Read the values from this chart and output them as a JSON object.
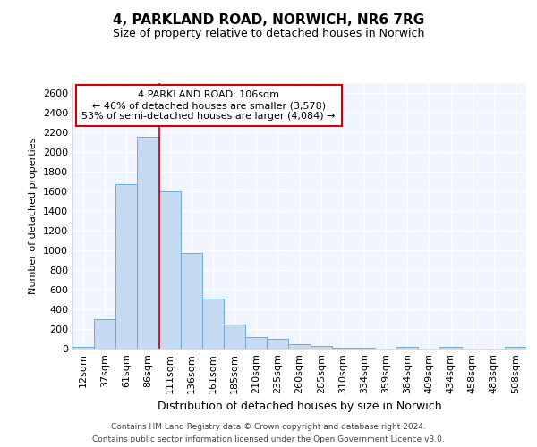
{
  "title_line1": "4, PARKLAND ROAD, NORWICH, NR6 7RG",
  "title_line2": "Size of property relative to detached houses in Norwich",
  "xlabel": "Distribution of detached houses by size in Norwich",
  "ylabel": "Number of detached properties",
  "categories": [
    "12sqm",
    "37sqm",
    "61sqm",
    "86sqm",
    "111sqm",
    "136sqm",
    "161sqm",
    "185sqm",
    "210sqm",
    "235sqm",
    "260sqm",
    "285sqm",
    "310sqm",
    "334sqm",
    "359sqm",
    "384sqm",
    "409sqm",
    "434sqm",
    "458sqm",
    "483sqm",
    "508sqm"
  ],
  "values": [
    20,
    300,
    1670,
    2150,
    1600,
    975,
    510,
    245,
    120,
    100,
    45,
    30,
    10,
    5,
    3,
    20,
    3,
    15,
    3,
    3,
    20
  ],
  "bar_color": "#c5d9f0",
  "bar_edge_color": "#6baed6",
  "vline_color": "#cc0000",
  "vline_x_index": 3.5,
  "annotation_line1": "4 PARKLAND ROAD: 106sqm",
  "annotation_line2": "← 46% of detached houses are smaller (3,578)",
  "annotation_line3": "53% of semi-detached houses are larger (4,084) →",
  "annotation_box_edge_color": "#cc0000",
  "ylim": [
    0,
    2700
  ],
  "yticks": [
    0,
    200,
    400,
    600,
    800,
    1000,
    1200,
    1400,
    1600,
    1800,
    2000,
    2200,
    2400,
    2600
  ],
  "footer_line1": "Contains HM Land Registry data © Crown copyright and database right 2024.",
  "footer_line2": "Contains public sector information licensed under the Open Government Licence v3.0.",
  "background_color": "#ffffff",
  "plot_bg_color": "#f0f4ff",
  "grid_color": "#ffffff",
  "title1_fontsize": 11,
  "title2_fontsize": 9,
  "ylabel_fontsize": 8,
  "xlabel_fontsize": 9,
  "tick_fontsize": 8,
  "annotation_fontsize": 8,
  "footer_fontsize": 6.5
}
